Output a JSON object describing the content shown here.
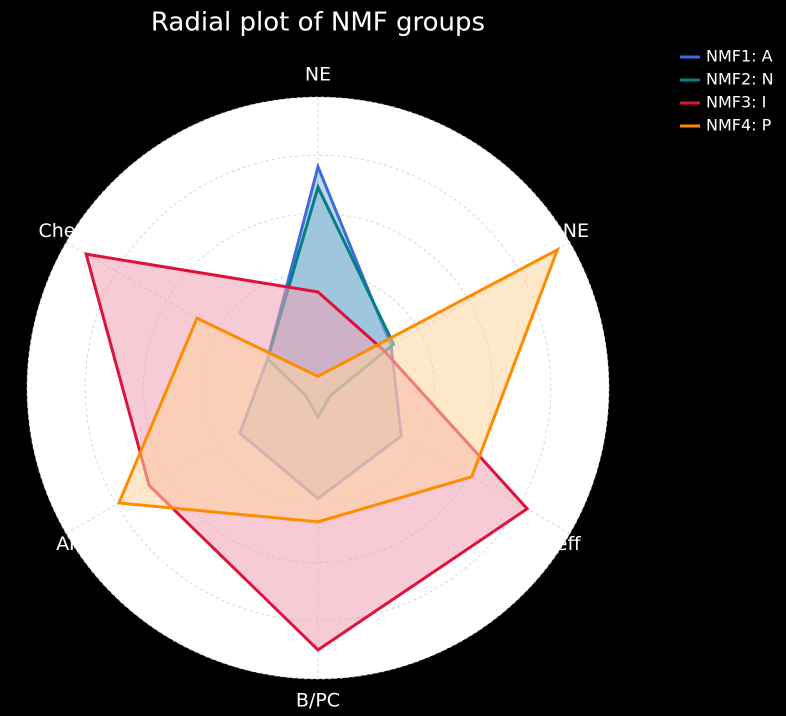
{
  "chart_data": {
    "type": "radar",
    "title": "Radial plot of NMF groups",
    "categories": [
      "NE",
      "onNE",
      "T-eff",
      "B/PC",
      "APM",
      "Check"
    ],
    "ylim": [
      0,
      1
    ],
    "yticks": [
      0.2,
      0.4,
      0.6,
      0.8,
      1.0
    ],
    "grid": true,
    "legend": "upper right",
    "series": [
      {
        "name": "NMF1: A",
        "color": "#4169e1",
        "fill": "#87b8d6",
        "values": [
          0.76,
          0.29,
          0.33,
          0.38,
          0.31,
          0.2
        ]
      },
      {
        "name": "NMF2: N",
        "color": "#008080",
        "fill": "#87b8d6",
        "values": [
          0.69,
          0.3,
          0.05,
          0.1,
          0.05,
          0.2
        ]
      },
      {
        "name": "NMF3: I",
        "color": "#dc143c",
        "fill": "#f0a0b4",
        "values": [
          0.33,
          0.26,
          0.83,
          0.9,
          0.67,
          0.92
        ]
      },
      {
        "name": "NMF4: P",
        "color": "#ff8c00",
        "fill": "#ffd49e",
        "values": [
          0.04,
          0.95,
          0.61,
          0.46,
          0.79,
          0.48
        ]
      }
    ]
  }
}
